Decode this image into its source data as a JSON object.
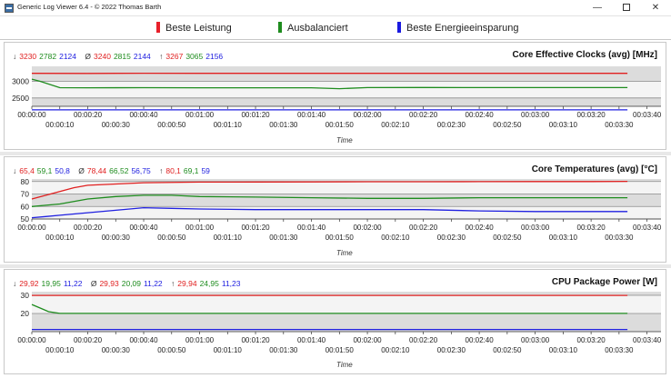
{
  "window": {
    "title": "Generic Log Viewer 6.4 - © 2022 Thomas Barth",
    "min_glyph": "—",
    "close_glyph": "✕"
  },
  "legend": [
    {
      "label": "Beste Leistung",
      "color": "#e8202a"
    },
    {
      "label": "Ausbalanciert",
      "color": "#1e8c1e"
    },
    {
      "label": "Beste Energieeinsparung",
      "color": "#1a1ae0"
    }
  ],
  "colors": {
    "red": "#e02020",
    "green": "#1e8c1e",
    "blue": "#2020e0"
  },
  "stat_symbols": {
    "min": "↓",
    "avg": "Ø",
    "max": "↑"
  },
  "x_axis": {
    "label": "Time",
    "ticks_upper": [
      "00:00:00",
      "00:00:20",
      "00:00:40",
      "00:01:00",
      "00:01:20",
      "00:01:40",
      "00:02:00",
      "00:02:20",
      "00:02:40",
      "00:03:00",
      "00:03:20",
      "00:03:40"
    ],
    "ticks_lower": [
      "00:00:10",
      "00:00:30",
      "00:00:50",
      "00:01:10",
      "00:01:30",
      "00:01:50",
      "00:02:10",
      "00:02:30",
      "00:02:50",
      "00:03:10",
      "00:03:30"
    ]
  },
  "panels": [
    {
      "title": "Core Effective Clocks (avg) [MHz]",
      "stats": {
        "min": [
          "3230",
          "2782",
          "2124"
        ],
        "avg": [
          "3240",
          "2815",
          "2144"
        ],
        "max": [
          "3267",
          "3065",
          "2156"
        ]
      }
    },
    {
      "title": "Core Temperatures (avg) [°C]",
      "stats": {
        "min": [
          "65,4",
          "59,1",
          "50,8"
        ],
        "avg": [
          "78,44",
          "66,52",
          "56,75"
        ],
        "max": [
          "80,1",
          "69,1",
          "59"
        ]
      }
    },
    {
      "title": "CPU Package Power [W]",
      "stats": {
        "min": [
          "29,92",
          "19,95",
          "11,22"
        ],
        "avg": [
          "29,93",
          "20,09",
          "11,22"
        ],
        "max": [
          "29,94",
          "24,95",
          "11,23"
        ]
      }
    }
  ],
  "chart_data": [
    {
      "type": "line",
      "title": "Core Effective Clocks (avg) [MHz]",
      "xlabel": "Time",
      "xlim": [
        0,
        225
      ],
      "ylim": [
        2250,
        3450
      ],
      "yticks": [
        2500,
        3000
      ],
      "series": [
        {
          "name": "Beste Leistung",
          "color": "#e02020",
          "x": [
            0,
            20,
            40,
            60,
            80,
            100,
            120,
            140,
            160,
            180,
            200,
            213
          ],
          "y": [
            3240,
            3238,
            3242,
            3240,
            3239,
            3240,
            3241,
            3240,
            3240,
            3239,
            3240,
            3241
          ]
        },
        {
          "name": "Ausbalanciert",
          "color": "#1e8c1e",
          "x": [
            0,
            3,
            10,
            20,
            40,
            60,
            80,
            100,
            110,
            120,
            140,
            160,
            180,
            200,
            213
          ],
          "y": [
            3065,
            3000,
            2810,
            2805,
            2808,
            2805,
            2807,
            2806,
            2780,
            2812,
            2815,
            2812,
            2813,
            2812,
            2812
          ]
        },
        {
          "name": "Beste Energieeinsparung",
          "color": "#2020e0",
          "x": [
            0,
            20,
            40,
            60,
            80,
            100,
            120,
            140,
            160,
            180,
            200,
            213
          ],
          "y": [
            2144,
            2144,
            2145,
            2144,
            2144,
            2143,
            2144,
            2145,
            2144,
            2144,
            2145,
            2144
          ]
        }
      ]
    },
    {
      "type": "line",
      "title": "Core Temperatures (avg) [°C]",
      "xlabel": "Time",
      "xlim": [
        0,
        225
      ],
      "ylim": [
        50,
        82
      ],
      "yticks": [
        50,
        60,
        70,
        80
      ],
      "series": [
        {
          "name": "Beste Leistung",
          "color": "#e02020",
          "x": [
            0,
            5,
            10,
            15,
            20,
            30,
            40,
            60,
            80,
            100,
            120,
            140,
            160,
            180,
            200,
            213
          ],
          "y": [
            66,
            69,
            72,
            75,
            77,
            78,
            79,
            79.5,
            79.6,
            79.7,
            79.8,
            79.8,
            79.9,
            80,
            80,
            80.1
          ]
        },
        {
          "name": "Ausbalanciert",
          "color": "#1e8c1e",
          "x": [
            0,
            5,
            10,
            20,
            30,
            40,
            50,
            60,
            80,
            100,
            120,
            140,
            160,
            180,
            200,
            213
          ],
          "y": [
            60,
            61,
            62,
            66,
            68,
            69,
            69,
            68,
            67.5,
            67,
            66.5,
            66.5,
            67,
            67,
            67,
            67
          ]
        },
        {
          "name": "Beste Energieeinsparung",
          "color": "#2020e0",
          "x": [
            0,
            5,
            10,
            20,
            30,
            40,
            50,
            60,
            80,
            100,
            120,
            140,
            160,
            180,
            200,
            213
          ],
          "y": [
            51,
            52,
            53,
            55,
            57,
            59,
            58.5,
            58,
            57.5,
            57.5,
            57.5,
            57.5,
            56.5,
            56,
            56,
            56
          ]
        }
      ]
    },
    {
      "type": "line",
      "title": "CPU Package Power [W]",
      "xlabel": "Time",
      "xlim": [
        0,
        225
      ],
      "ylim": [
        10,
        32
      ],
      "yticks": [
        20,
        30
      ],
      "series": [
        {
          "name": "Beste Leistung",
          "color": "#e02020",
          "x": [
            0,
            40,
            80,
            120,
            160,
            200,
            213
          ],
          "y": [
            29.93,
            29.93,
            29.93,
            29.93,
            29.93,
            29.93,
            29.93
          ]
        },
        {
          "name": "Ausbalanciert",
          "color": "#1e8c1e",
          "x": [
            0,
            3,
            6,
            10,
            20,
            40,
            80,
            120,
            160,
            200,
            213
          ],
          "y": [
            24.95,
            23,
            21,
            20.05,
            20.05,
            20.05,
            20.04,
            20.05,
            20.05,
            20.05,
            20.05
          ]
        },
        {
          "name": "Beste Energieeinsparung",
          "color": "#2020e0",
          "x": [
            0,
            40,
            80,
            120,
            160,
            200,
            213
          ],
          "y": [
            11.22,
            11.22,
            11.22,
            11.22,
            11.22,
            11.22,
            11.22
          ]
        }
      ]
    }
  ]
}
